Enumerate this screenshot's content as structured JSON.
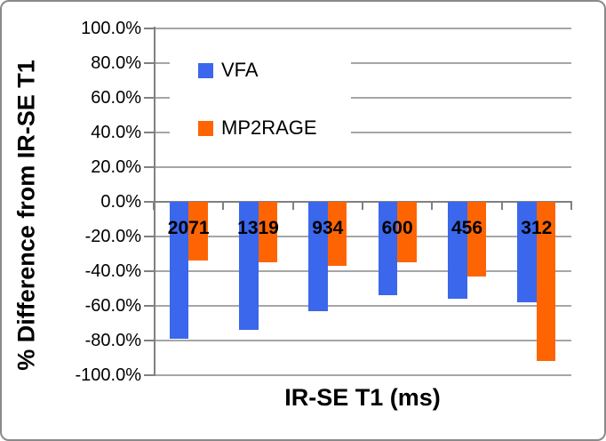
{
  "figure": {
    "background": "#ffffff",
    "border_color": "#8a8a8a",
    "gridline_color": "#a6a6a6",
    "axis_color": "#808080"
  },
  "chart_data": {
    "type": "bar",
    "title": "",
    "xlabel": "IR-SE T1 (ms)",
    "ylabel": "% Difference from IR-SE T1",
    "categories": [
      "2071",
      "1319",
      "934",
      "600",
      "456",
      "312"
    ],
    "series": [
      {
        "name": "VFA",
        "color": "#3a67eb",
        "values": [
          -79,
          -74,
          -63,
          -54,
          -56,
          -58
        ]
      },
      {
        "name": "MP2RAGE",
        "color": "#fe6502",
        "values": [
          -34,
          -35,
          -37,
          -35,
          -43,
          -92
        ]
      }
    ],
    "ylim": [
      -100,
      100
    ],
    "ytick_step": 20,
    "ytick_labels": [
      "100.0%",
      "80.0%",
      "60.0%",
      "40.0%",
      "20.0%",
      "0.0%",
      "-20.0%",
      "-40.0%",
      "-60.0%",
      "-80.0%",
      "-100.0%"
    ],
    "grid": true,
    "legend_position": "inside-upper-left",
    "category_labels_position": "below-zero-line"
  }
}
